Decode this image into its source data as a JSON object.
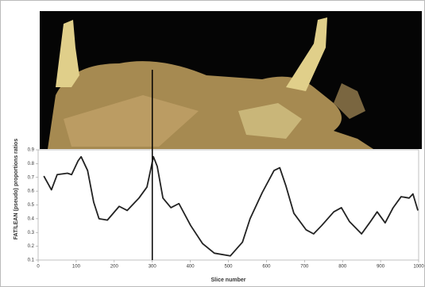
{
  "chart_data": {
    "type": "line",
    "x_label": "Slice number",
    "y_label": "FAT/LEAN (pseudo) proportions ratios",
    "x": [
      15,
      35,
      50,
      77,
      88,
      105,
      113,
      130,
      146,
      160,
      182,
      213,
      234,
      265,
      286,
      303,
      313,
      328,
      349,
      370,
      401,
      432,
      463,
      505,
      537,
      557,
      589,
      620,
      635,
      651,
      672,
      704,
      724,
      745,
      777,
      797,
      818,
      850,
      871,
      891,
      912,
      933,
      954,
      975,
      985,
      998
    ],
    "series": [
      {
        "name": "ratio",
        "color": "#222222",
        "values": [
          0.71,
          0.61,
          0.72,
          0.73,
          0.72,
          0.82,
          0.85,
          0.75,
          0.52,
          0.4,
          0.39,
          0.49,
          0.46,
          0.55,
          0.63,
          0.85,
          0.78,
          0.55,
          0.48,
          0.51,
          0.35,
          0.22,
          0.15,
          0.13,
          0.23,
          0.4,
          0.59,
          0.75,
          0.77,
          0.64,
          0.44,
          0.32,
          0.29,
          0.35,
          0.45,
          0.48,
          0.38,
          0.29,
          0.37,
          0.45,
          0.37,
          0.48,
          0.56,
          0.55,
          0.58,
          0.46
        ]
      }
    ],
    "marker_x": 300,
    "xlim": [
      0,
      1000
    ],
    "xticks": [
      0,
      100,
      200,
      300,
      400,
      500,
      600,
      700,
      800,
      900,
      1000
    ],
    "ylim": [
      0.1,
      0.9
    ],
    "yticks": [
      0.1,
      0.2,
      0.3,
      0.4,
      0.5,
      0.6,
      0.7,
      0.8,
      0.9
    ]
  }
}
